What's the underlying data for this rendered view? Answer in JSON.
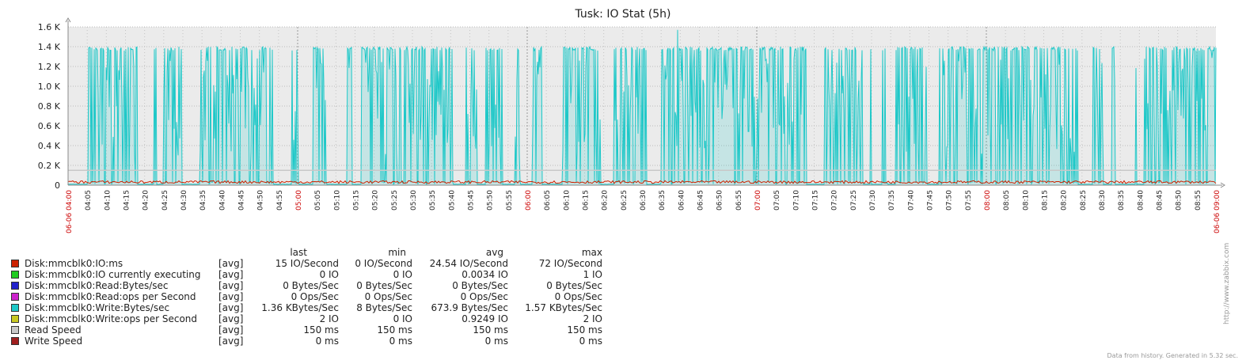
{
  "chart_data": {
    "type": "area",
    "title": "Tusk: IO Stat (5h)",
    "y_unit": "K",
    "ylim": [
      0,
      1600
    ],
    "y_ticks": [
      {
        "v": 0,
        "label": "0"
      },
      {
        "v": 200,
        "label": "0.2 K"
      },
      {
        "v": 400,
        "label": "0.4 K"
      },
      {
        "v": 600,
        "label": "0.6 K"
      },
      {
        "v": 800,
        "label": "0.8 K"
      },
      {
        "v": 1000,
        "label": "1.0 K"
      },
      {
        "v": 1200,
        "label": "1.2 K"
      },
      {
        "v": 1400,
        "label": "1.4 K"
      },
      {
        "v": 1600,
        "label": "1.6 K"
      }
    ],
    "x_start_label": "06-06 04:00",
    "x_end_label": "06-06 09:00",
    "x_ticks": [
      "04:05",
      "04:10",
      "04:15",
      "04:20",
      "04:25",
      "04:30",
      "04:35",
      "04:40",
      "04:45",
      "04:50",
      "04:55",
      "05:00",
      "05:05",
      "05:10",
      "05:15",
      "05:20",
      "05:25",
      "05:30",
      "05:35",
      "05:40",
      "05:45",
      "05:50",
      "05:55",
      "06:00",
      "06:05",
      "06:10",
      "06:15",
      "06:20",
      "06:25",
      "06:30",
      "06:35",
      "06:40",
      "06:45",
      "06:50",
      "06:55",
      "07:00",
      "07:05",
      "07:10",
      "07:15",
      "07:20",
      "07:25",
      "07:30",
      "07:35",
      "07:40",
      "07:45",
      "07:50",
      "07:55",
      "08:00",
      "08:05",
      "08:10",
      "08:15",
      "08:20",
      "08:25",
      "08:30",
      "08:35",
      "08:40",
      "08:45",
      "08:50",
      "08:55"
    ],
    "x_highlight_ticks": [
      "05:00",
      "06:00",
      "07:00",
      "08:00"
    ],
    "series_write_bytes_sec": {
      "name": "Disk:mmcblk0:Write:Bytes/sec",
      "color": "#1ec8c8",
      "peak_level": 1400,
      "max": 1570,
      "low_level": 8
    },
    "series_read_speed": {
      "name": "Read Speed",
      "color": "#c8c8c8",
      "value": 150
    },
    "series_io_ms": {
      "name": "Disk:mmcblk0:IO:ms",
      "color": "#cc2200",
      "approx_level": 30
    },
    "legend_header": {
      "last": "last",
      "min": "min",
      "avg": "avg",
      "max": "max"
    },
    "legend": [
      {
        "name": "Disk:mmcblk0:IO:ms",
        "func": "[avg]",
        "color": "#cc2200",
        "last": "15 IO/Second",
        "min": "0 IO/Second",
        "avg": "24.54 IO/Second",
        "max": "72 IO/Second"
      },
      {
        "name": "Disk:mmcblk0:IO currently executing",
        "func": "[avg]",
        "color": "#22cc22",
        "last": "0 IO",
        "min": "0 IO",
        "avg": "0.0034 IO",
        "max": "1 IO"
      },
      {
        "name": "Disk:mmcblk0:Read:Bytes/sec",
        "func": "[avg]",
        "color": "#2222cc",
        "last": "0 Bytes/Sec",
        "min": "0 Bytes/Sec",
        "avg": "0 Bytes/Sec",
        "max": "0 Bytes/Sec"
      },
      {
        "name": "Disk:mmcblk0:Read:ops per Second",
        "func": "[avg]",
        "color": "#cc22cc",
        "last": "0 Ops/Sec",
        "min": "0 Ops/Sec",
        "avg": "0 Ops/Sec",
        "max": "0 Ops/Sec"
      },
      {
        "name": "Disk:mmcblk0:Write:Bytes/sec",
        "func": "[avg]",
        "color": "#1ec8c8",
        "last": "1.36 KBytes/Sec",
        "min": "8 Bytes/Sec",
        "avg": "673.9 Bytes/Sec",
        "max": "1.57 KBytes/Sec"
      },
      {
        "name": "Disk:mmcblk0:Write:ops per Second",
        "func": "[avg]",
        "color": "#c8c822",
        "last": "2 IO",
        "min": "0 IO",
        "avg": "0.9249 IO",
        "max": "2 IO"
      },
      {
        "name": "Read Speed",
        "func": "[avg]",
        "color": "#c8c8c8",
        "last": "150 ms",
        "min": "150 ms",
        "avg": "150 ms",
        "max": "150 ms"
      },
      {
        "name": "Write Speed",
        "func": "[avg]",
        "color": "#a01e1e",
        "last": "0 ms",
        "min": "0 ms",
        "avg": "0 ms",
        "max": "0 ms"
      }
    ],
    "grid": true
  },
  "watermark": "http://www.zabbix.com",
  "footer": "Data from history. Generated in 5.32 sec."
}
